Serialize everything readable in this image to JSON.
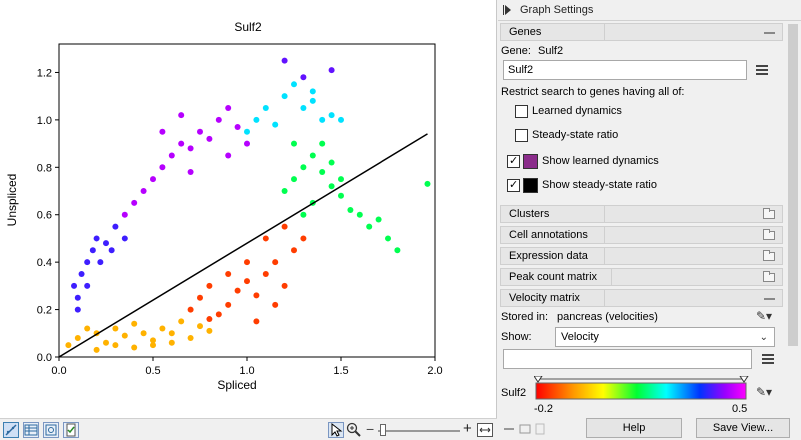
{
  "plot": {
    "title": "Sulf2",
    "xlabel": "Spliced",
    "ylabel": "Unspliced"
  },
  "chart_data": {
    "type": "scatter",
    "title": "Sulf2",
    "xlabel": "Spliced",
    "ylabel": "Unspliced",
    "xlim": [
      0.0,
      2.0
    ],
    "ylim": [
      0.0,
      1.32
    ],
    "xticks": [
      "0.0",
      "0.5",
      "1.0",
      "1.5",
      "2.0"
    ],
    "yticks": [
      "0.0",
      "0.2",
      "0.4",
      "0.6",
      "0.8",
      "1.0",
      "1.2"
    ],
    "grid": false,
    "steady_state_line": {
      "slope": 0.48,
      "color": "#000000"
    },
    "color_scale": {
      "min": -0.2,
      "max": 0.5,
      "colormap": "rainbow (red→yellow→green→cyan→blue→magenta)"
    },
    "series": [
      {
        "region": "low_spliced_low_unspliced_yellow",
        "value": -0.05,
        "points": [
          [
            0.05,
            0.05
          ],
          [
            0.1,
            0.08
          ],
          [
            0.15,
            0.12
          ],
          [
            0.2,
            0.1
          ],
          [
            0.25,
            0.06
          ],
          [
            0.3,
            0.12
          ],
          [
            0.35,
            0.09
          ],
          [
            0.4,
            0.14
          ],
          [
            0.45,
            0.1
          ],
          [
            0.5,
            0.07
          ],
          [
            0.55,
            0.12
          ],
          [
            0.6,
            0.1
          ],
          [
            0.65,
            0.15
          ],
          [
            0.7,
            0.08
          ],
          [
            0.75,
            0.13
          ],
          [
            0.8,
            0.11
          ],
          [
            0.2,
            0.03
          ],
          [
            0.3,
            0.05
          ],
          [
            0.4,
            0.04
          ],
          [
            0.5,
            0.05
          ],
          [
            0.6,
            0.06
          ]
        ]
      },
      {
        "region": "lower_branch_orange_red",
        "value": -0.15,
        "points": [
          [
            0.7,
            0.2
          ],
          [
            0.75,
            0.25
          ],
          [
            0.8,
            0.3
          ],
          [
            0.85,
            0.18
          ],
          [
            0.9,
            0.22
          ],
          [
            0.95,
            0.28
          ],
          [
            1.0,
            0.32
          ],
          [
            1.05,
            0.26
          ],
          [
            1.1,
            0.35
          ],
          [
            1.15,
            0.4
          ],
          [
            1.2,
            0.3
          ],
          [
            1.25,
            0.45
          ],
          [
            1.0,
            0.4
          ],
          [
            1.1,
            0.5
          ],
          [
            1.2,
            0.55
          ],
          [
            1.3,
            0.5
          ],
          [
            0.9,
            0.35
          ],
          [
            1.05,
            0.15
          ],
          [
            0.8,
            0.16
          ],
          [
            1.15,
            0.22
          ]
        ]
      },
      {
        "region": "upper_right_green",
        "value": 0.15,
        "points": [
          [
            1.2,
            0.7
          ],
          [
            1.25,
            0.75
          ],
          [
            1.3,
            0.8
          ],
          [
            1.35,
            0.85
          ],
          [
            1.4,
            0.78
          ],
          [
            1.45,
            0.72
          ],
          [
            1.5,
            0.68
          ],
          [
            1.55,
            0.62
          ],
          [
            1.6,
            0.6
          ],
          [
            1.35,
            0.65
          ],
          [
            1.3,
            0.6
          ],
          [
            1.25,
            0.9
          ],
          [
            1.4,
            0.9
          ],
          [
            1.45,
            0.82
          ],
          [
            1.5,
            0.75
          ],
          [
            1.65,
            0.55
          ],
          [
            1.7,
            0.58
          ],
          [
            1.75,
            0.5
          ],
          [
            1.8,
            0.45
          ],
          [
            1.96,
            0.73
          ]
        ]
      },
      {
        "region": "top_cyan",
        "value": 0.25,
        "points": [
          [
            1.0,
            0.95
          ],
          [
            1.05,
            1.0
          ],
          [
            1.1,
            1.05
          ],
          [
            1.15,
            0.98
          ],
          [
            1.2,
            1.1
          ],
          [
            1.25,
            1.15
          ],
          [
            1.3,
            1.05
          ],
          [
            1.35,
            1.08
          ],
          [
            1.4,
            1.0
          ],
          [
            1.45,
            1.02
          ],
          [
            1.5,
            1.0
          ],
          [
            1.35,
            1.12
          ]
        ]
      },
      {
        "region": "upper_left_magenta_purple",
        "value": 0.45,
        "points": [
          [
            0.5,
            0.75
          ],
          [
            0.55,
            0.8
          ],
          [
            0.6,
            0.85
          ],
          [
            0.65,
            0.9
          ],
          [
            0.7,
            0.88
          ],
          [
            0.75,
            0.95
          ],
          [
            0.8,
            0.92
          ],
          [
            0.85,
            1.0
          ],
          [
            0.9,
            1.05
          ],
          [
            0.95,
            0.97
          ],
          [
            0.4,
            0.65
          ],
          [
            0.45,
            0.7
          ],
          [
            0.35,
            0.6
          ],
          [
            0.55,
            0.95
          ],
          [
            0.7,
            0.78
          ],
          [
            0.9,
            0.85
          ],
          [
            1.0,
            0.9
          ],
          [
            0.65,
            1.02
          ]
        ]
      },
      {
        "region": "left_blue_rising_branch",
        "value": 0.38,
        "points": [
          [
            0.1,
            0.25
          ],
          [
            0.12,
            0.35
          ],
          [
            0.15,
            0.4
          ],
          [
            0.18,
            0.45
          ],
          [
            0.2,
            0.5
          ],
          [
            0.25,
            0.48
          ],
          [
            0.3,
            0.55
          ],
          [
            0.08,
            0.3
          ],
          [
            0.15,
            0.3
          ],
          [
            0.22,
            0.4
          ],
          [
            0.28,
            0.45
          ],
          [
            0.35,
            0.5
          ],
          [
            0.1,
            0.2
          ]
        ]
      },
      {
        "region": "top_outliers_blue",
        "value": 0.4,
        "points": [
          [
            1.2,
            1.25
          ],
          [
            1.45,
            1.21
          ],
          [
            1.3,
            1.18
          ]
        ]
      }
    ]
  },
  "toolbar": {
    "icons": [
      "scatter-plot-view-icon",
      "table-view-icon",
      "image-export-icon",
      "documentation-icon"
    ],
    "tools": [
      "pointer-tool-icon",
      "zoom-tool-icon"
    ],
    "zoom_minus": "−",
    "zoom_plus": "+"
  },
  "settings": {
    "title": "Graph Settings",
    "genes": {
      "header": "Genes",
      "gene_label": "Gene:",
      "gene_value": "Sulf2",
      "search_value": "Sulf2",
      "restrict_label": "Restrict search to genes having all of:",
      "learned_dynamics": {
        "label": "Learned dynamics",
        "checked": false
      },
      "steady_state_ratio": {
        "label": "Steady-state ratio",
        "checked": false
      },
      "show_learned_dynamics": {
        "label": "Show learned dynamics",
        "checked": true,
        "color": "#8b2c8b"
      },
      "show_steady_state_ratio": {
        "label": "Show steady-state ratio",
        "checked": true,
        "color": "#000000"
      }
    },
    "sections": {
      "clusters": "Clusters",
      "cell_annotations": "Cell annotations",
      "expression_data": "Expression data",
      "peak_count_matrix": "Peak count matrix",
      "velocity_matrix": "Velocity matrix"
    },
    "velocity": {
      "stored_in_label": "Stored in:",
      "stored_in_value": "pancreas (velocities)",
      "show_label": "Show:",
      "show_value": "Velocity",
      "gradient_label": "Sulf2",
      "gradient_min": "-0.2",
      "gradient_max": "0.5"
    },
    "buttons": {
      "help": "Help",
      "save_view": "Save View..."
    }
  }
}
